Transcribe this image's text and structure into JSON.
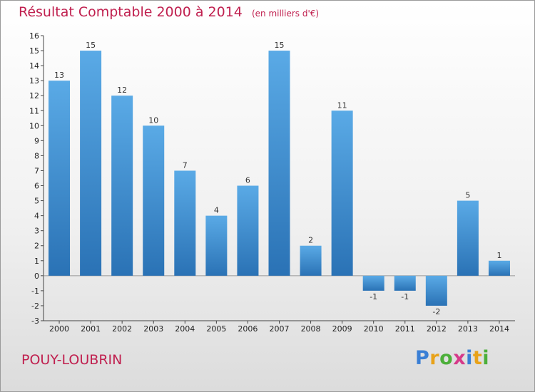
{
  "title": "Résultat Comptable 2000 à 2014",
  "unit": "(en milliers d'€)",
  "commune": "POUY-LOUBRIN",
  "logo": {
    "letters": [
      "P",
      "r",
      "o",
      "x",
      "i",
      "t",
      "i"
    ],
    "colors": [
      "#3a7fd5",
      "#e8a21a",
      "#4caf3a",
      "#d63a8a",
      "#3a7fd5",
      "#e8a21a",
      "#4caf3a"
    ]
  },
  "colors": {
    "bar_top": "#5aaae6",
    "bar_bottom": "#2a72b5",
    "accent": "#c0204f"
  },
  "chart_data": {
    "type": "bar",
    "categories": [
      "2000",
      "2001",
      "2002",
      "2003",
      "2004",
      "2005",
      "2006",
      "2007",
      "2008",
      "2009",
      "2010",
      "2011",
      "2012",
      "2013",
      "2014"
    ],
    "values": [
      13,
      15,
      12,
      10,
      7,
      4,
      6,
      15,
      2,
      11,
      -1,
      -1,
      -2,
      5,
      1
    ],
    "ylim": [
      -3,
      16
    ],
    "yticks": [
      -3,
      -2,
      -1,
      0,
      1,
      2,
      3,
      4,
      5,
      6,
      7,
      8,
      9,
      10,
      11,
      12,
      13,
      14,
      15,
      16
    ],
    "grid": false
  }
}
